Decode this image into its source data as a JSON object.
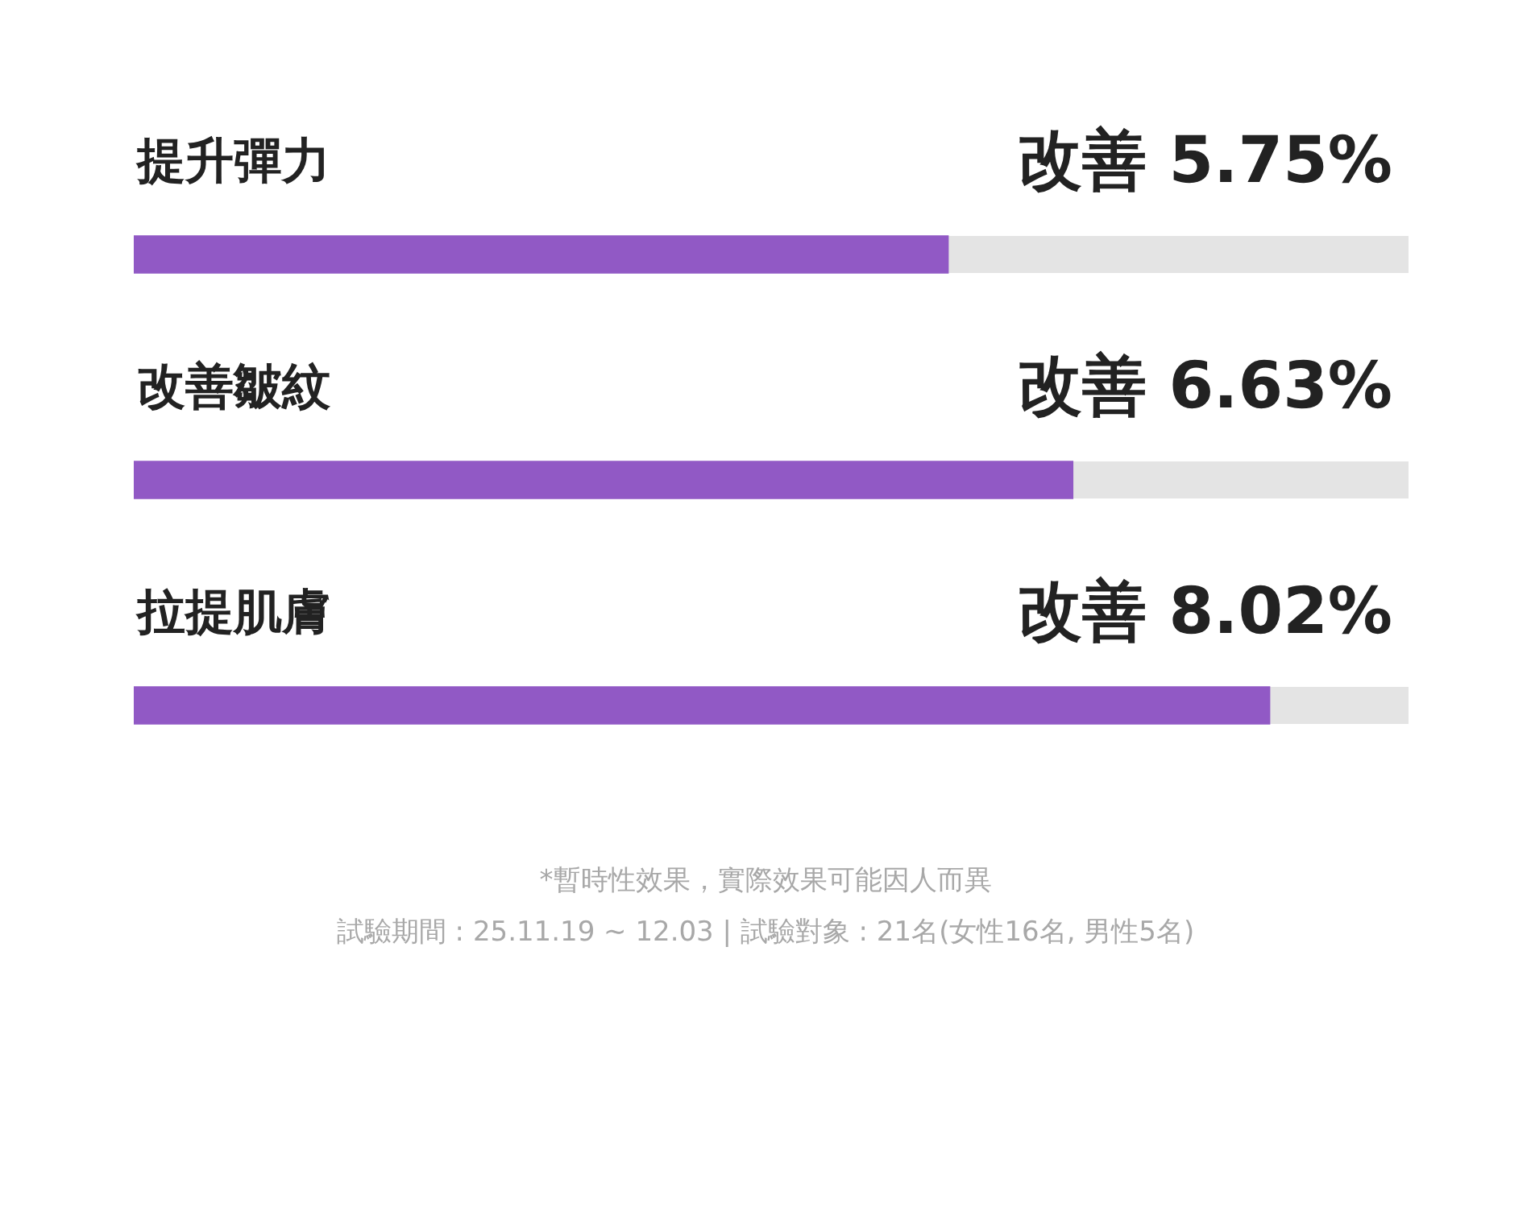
{
  "chart_data": {
    "type": "bar",
    "orientation": "horizontal",
    "categories": [
      "提升彈力",
      "改善皺紋",
      "拉提肌膚"
    ],
    "values": [
      5.75,
      6.63,
      8.02
    ],
    "value_labels": [
      "改善 5.75%",
      "改善 6.63%",
      "改善 8.02%"
    ],
    "color": "#9159c5",
    "tick_labels": false,
    "legend": false,
    "annotations": [
      "*暫時性效果，實際效果可能因人而異",
      "試驗期間 : 25.11.19 ~ 12.03 | 試驗對象 : 21名(女性16名, 男性5名)"
    ]
  }
}
